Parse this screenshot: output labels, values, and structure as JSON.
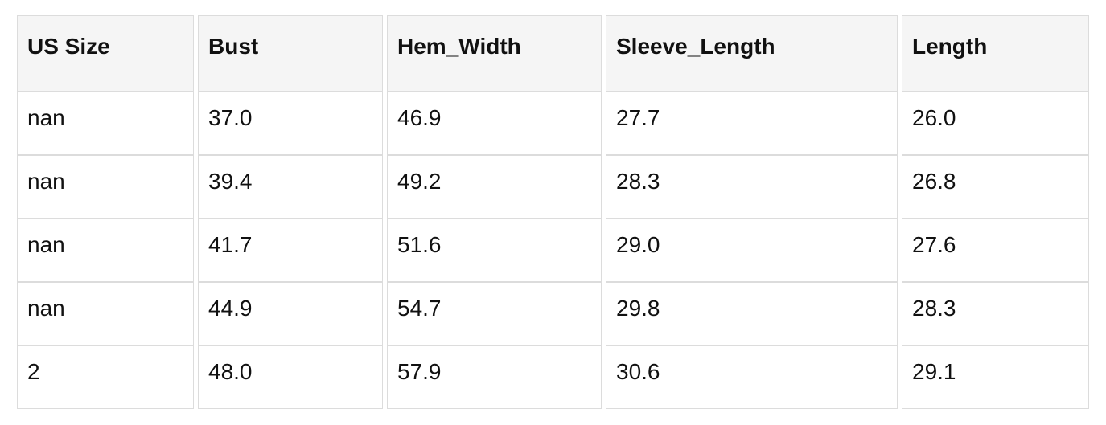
{
  "colors": {
    "page_bg": "#ffffff",
    "header_bg": "#f5f5f5",
    "cell_bg": "#ffffff",
    "border": "#dcdcdc",
    "text": "#111111"
  },
  "table": {
    "columns": [
      "US Size",
      "Bust",
      "Hem_Width",
      "Sleeve_Length",
      "Length"
    ],
    "rows": [
      [
        "nan",
        "37.0",
        "46.9",
        "27.7",
        "26.0"
      ],
      [
        "nan",
        "39.4",
        "49.2",
        "28.3",
        "26.8"
      ],
      [
        "nan",
        "41.7",
        "51.6",
        "29.0",
        "27.6"
      ],
      [
        "nan",
        "44.9",
        "54.7",
        "29.8",
        "28.3"
      ],
      [
        "2",
        "48.0",
        "57.9",
        "30.6",
        "29.1"
      ]
    ]
  }
}
